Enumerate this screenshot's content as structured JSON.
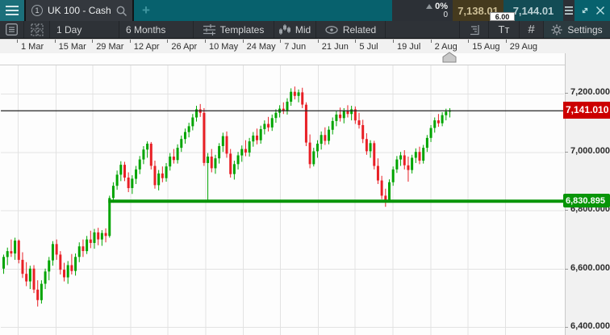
{
  "topbar": {
    "tab_number": "1",
    "tab_title": "UK 100 - Cash",
    "add_label": "+",
    "change_pct": "0%",
    "change_abs": "0",
    "sell_price": "7,138.01",
    "buy_price": "7,144.01",
    "spread": "6.00"
  },
  "toolbar": {
    "period": "1 Day",
    "range": "6 Months",
    "templates": "Templates",
    "mid": "Mid",
    "related": "Related",
    "text_tool": "Tᴛ",
    "hash_tool": "#",
    "settings": "Settings"
  },
  "axis": {
    "dates": [
      "1 Mar",
      "15 Mar",
      "29 Mar",
      "12 Apr",
      "26 Apr",
      "10 May",
      "24 May",
      "7 Jun",
      "21 Jun",
      "5 Jul",
      "19 Jul",
      "2 Aug",
      "15 Aug",
      "29 Aug"
    ],
    "prices": [
      {
        "label": "7,200.000",
        "value": 7200
      },
      {
        "label": "7,000.000",
        "value": 7000
      },
      {
        "label": "6,800.000",
        "value": 6800
      },
      {
        "label": "6,600.000",
        "value": 6600
      },
      {
        "label": "6,400.000",
        "value": 6400
      }
    ]
  },
  "levels": {
    "current": {
      "label": "7,141.010",
      "value": 7141.01,
      "color": "#cc0000",
      "line_color": "#222222"
    },
    "support": {
      "label": "6,830.895",
      "value": 6830.895,
      "color": "#089508",
      "line_color": "#089508",
      "start_candle": 28
    }
  },
  "chart_data": {
    "type": "candlestick",
    "title": "UK 100 - Cash, 1 Day, 6 Months",
    "x_tick_labels": [
      "1 Mar",
      "15 Mar",
      "29 Mar",
      "12 Apr",
      "26 Apr",
      "10 May",
      "24 May",
      "7 Jun",
      "21 Jun",
      "5 Jul",
      "19 Jul",
      "2 Aug",
      "15 Aug",
      "29 Aug"
    ],
    "y_tick_values": [
      7200,
      7000,
      6800,
      6600,
      6400
    ],
    "ylim": [
      6372,
      7335
    ],
    "grid": true,
    "up_color": "#00a400",
    "down_color": "#e81f25",
    "annotations": [
      {
        "type": "hline",
        "price": 7141.01,
        "color": "#222222",
        "note": "current price line"
      },
      {
        "type": "hline",
        "price": 6830.895,
        "color": "#089508",
        "note": "support level line"
      }
    ],
    "candles": [
      [
        6600,
        6648,
        6582,
        6640
      ],
      [
        6640,
        6672,
        6612,
        6660
      ],
      [
        6660,
        6700,
        6640,
        6652
      ],
      [
        6652,
        6706,
        6630,
        6696
      ],
      [
        6696,
        6700,
        6618,
        6630
      ],
      [
        6630,
        6656,
        6568,
        6582
      ],
      [
        6582,
        6622,
        6540,
        6556
      ],
      [
        6556,
        6610,
        6530,
        6600
      ],
      [
        6600,
        6612,
        6516,
        6528
      ],
      [
        6528,
        6560,
        6470,
        6492
      ],
      [
        6492,
        6560,
        6480,
        6548
      ],
      [
        6548,
        6600,
        6530,
        6590
      ],
      [
        6590,
        6640,
        6560,
        6628
      ],
      [
        6628,
        6694,
        6610,
        6684
      ],
      [
        6684,
        6700,
        6630,
        6648
      ],
      [
        6648,
        6660,
        6580,
        6596
      ],
      [
        6596,
        6620,
        6556,
        6570
      ],
      [
        6570,
        6626,
        6548,
        6612
      ],
      [
        6612,
        6650,
        6580,
        6592
      ],
      [
        6592,
        6652,
        6576,
        6640
      ],
      [
        6640,
        6690,
        6622,
        6676
      ],
      [
        6676,
        6700,
        6640,
        6660
      ],
      [
        6660,
        6712,
        6650,
        6700
      ],
      [
        6700,
        6730,
        6670,
        6688
      ],
      [
        6688,
        6736,
        6668,
        6724
      ],
      [
        6724,
        6740,
        6680,
        6700
      ],
      [
        6700,
        6732,
        6678,
        6722
      ],
      [
        6722,
        6738,
        6690,
        6712
      ],
      [
        6712,
        6850,
        6706,
        6842
      ],
      [
        6842,
        6896,
        6826,
        6884
      ],
      [
        6884,
        6936,
        6870,
        6922
      ],
      [
        6922,
        6968,
        6900,
        6956
      ],
      [
        6956,
        6966,
        6900,
        6912
      ],
      [
        6912,
        6930,
        6862,
        6876
      ],
      [
        6876,
        6920,
        6856,
        6908
      ],
      [
        6908,
        6952,
        6890,
        6940
      ],
      [
        6940,
        6986,
        6924,
        6974
      ],
      [
        6974,
        7020,
        6958,
        7008
      ],
      [
        7008,
        7036,
        6980,
        7028
      ],
      [
        7028,
        7034,
        6940,
        6952
      ],
      [
        6952,
        6970,
        6874,
        6886
      ],
      [
        6886,
        6938,
        6868,
        6926
      ],
      [
        6926,
        6950,
        6896,
        6910
      ],
      [
        6910,
        6962,
        6898,
        6950
      ],
      [
        6950,
        6996,
        6936,
        6984
      ],
      [
        6984,
        7010,
        6960,
        6972
      ],
      [
        6972,
        7026,
        6960,
        7014
      ],
      [
        7014,
        7056,
        7000,
        7044
      ],
      [
        7044,
        7080,
        7028,
        7068
      ],
      [
        7068,
        7100,
        7050,
        7088
      ],
      [
        7088,
        7130,
        7074,
        7118
      ],
      [
        7118,
        7158,
        7104,
        7146
      ],
      [
        7146,
        7164,
        7120,
        7134
      ],
      [
        7134,
        7150,
        6952,
        6962
      ],
      [
        6962,
        6996,
        6828,
        6984
      ],
      [
        6984,
        7010,
        6930,
        6944
      ],
      [
        6944,
        6990,
        6925,
        6978
      ],
      [
        6978,
        7030,
        6960,
        7020
      ],
      [
        7020,
        7066,
        7000,
        7054
      ],
      [
        7054,
        7070,
        6980,
        6994
      ],
      [
        6994,
        7010,
        6912,
        6924
      ],
      [
        6924,
        6970,
        6905,
        6958
      ],
      [
        6958,
        7000,
        6940,
        6988
      ],
      [
        6988,
        7022,
        6966,
        7010
      ],
      [
        7010,
        7040,
        6985,
        6998
      ],
      [
        6998,
        7048,
        6984,
        7036
      ],
      [
        7036,
        7068,
        7018,
        7056
      ],
      [
        7056,
        7080,
        7026,
        7040
      ],
      [
        7040,
        7090,
        7028,
        7078
      ],
      [
        7078,
        7108,
        7060,
        7096
      ],
      [
        7096,
        7120,
        7070,
        7084
      ],
      [
        7084,
        7128,
        7072,
        7116
      ],
      [
        7116,
        7146,
        7100,
        7134
      ],
      [
        7134,
        7160,
        7118,
        7148
      ],
      [
        7148,
        7170,
        7130,
        7140
      ],
      [
        7140,
        7184,
        7128,
        7172
      ],
      [
        7172,
        7218,
        7158,
        7206
      ],
      [
        7206,
        7224,
        7180,
        7192
      ],
      [
        7192,
        7214,
        7170,
        7204
      ],
      [
        7204,
        7220,
        7150,
        7162
      ],
      [
        7162,
        7170,
        7020,
        7032
      ],
      [
        7032,
        7060,
        6944,
        6958
      ],
      [
        6958,
        7014,
        6950,
        7002
      ],
      [
        7002,
        7040,
        6980,
        7028
      ],
      [
        7028,
        7070,
        7008,
        7058
      ],
      [
        7058,
        7084,
        7024,
        7038
      ],
      [
        7038,
        7088,
        7026,
        7076
      ],
      [
        7076,
        7118,
        7060,
        7106
      ],
      [
        7106,
        7140,
        7088,
        7128
      ],
      [
        7128,
        7152,
        7104,
        7116
      ],
      [
        7116,
        7150,
        7098,
        7140
      ],
      [
        7140,
        7160,
        7118,
        7130
      ],
      [
        7130,
        7158,
        7108,
        7146
      ],
      [
        7146,
        7156,
        7096,
        7108
      ],
      [
        7108,
        7134,
        7080,
        7092
      ],
      [
        7092,
        7110,
        7030,
        7044
      ],
      [
        7044,
        7064,
        6990,
        7002
      ],
      [
        7002,
        7040,
        6980,
        7030
      ],
      [
        7030,
        7038,
        6940,
        6952
      ],
      [
        6952,
        6978,
        6890,
        6902
      ],
      [
        6902,
        6918,
        6838,
        6850
      ],
      [
        6850,
        6874,
        6812,
        6832
      ],
      [
        6832,
        6906,
        6828,
        6896
      ],
      [
        6896,
        6950,
        6884,
        6940
      ],
      [
        6940,
        6986,
        6928,
        6974
      ],
      [
        6974,
        7000,
        6952,
        6988
      ],
      [
        6988,
        7006,
        6940,
        6954
      ],
      [
        6954,
        6984,
        6898,
        6938
      ],
      [
        6938,
        6990,
        6926,
        6980
      ],
      [
        6980,
        7012,
        6962,
        7000
      ],
      [
        7000,
        7018,
        6958,
        6970
      ],
      [
        6970,
        7024,
        6960,
        7014
      ],
      [
        7014,
        7058,
        7000,
        7048
      ],
      [
        7048,
        7092,
        7034,
        7082
      ],
      [
        7082,
        7118,
        7066,
        7108
      ],
      [
        7108,
        7130,
        7086,
        7098
      ],
      [
        7098,
        7136,
        7088,
        7126
      ],
      [
        7126,
        7148,
        7108,
        7138
      ],
      [
        7138,
        7150,
        7118,
        7143
      ]
    ]
  }
}
